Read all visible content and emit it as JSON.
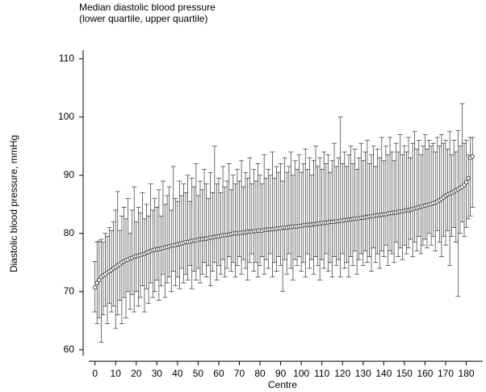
{
  "chart_data": {
    "type": "errorbar",
    "title": "Median diastolic blood pressure",
    "subtitle": "(lower quartile, upper quartile)",
    "x_label": "Centre",
    "y_label": "Diastolic blood pressure, mmHg",
    "xlim": [
      -3,
      188
    ],
    "ylim": [
      59,
      111.5
    ],
    "xticks": [
      0,
      10,
      20,
      30,
      40,
      50,
      60,
      70,
      80,
      90,
      100,
      110,
      120,
      130,
      140,
      150,
      160,
      170,
      180
    ],
    "yticks": [
      60,
      70,
      80,
      90,
      100,
      110
    ],
    "color": "#333333",
    "x": [
      0,
      1,
      2,
      3,
      4,
      5,
      6,
      7,
      8,
      9,
      10,
      11,
      12,
      13,
      14,
      15,
      16,
      17,
      18,
      19,
      20,
      21,
      22,
      23,
      24,
      25,
      26,
      27,
      28,
      29,
      30,
      31,
      32,
      33,
      34,
      35,
      36,
      37,
      38,
      39,
      40,
      41,
      42,
      43,
      44,
      45,
      46,
      47,
      48,
      49,
      50,
      51,
      52,
      53,
      54,
      55,
      56,
      57,
      58,
      59,
      60,
      61,
      62,
      63,
      64,
      65,
      66,
      67,
      68,
      69,
      70,
      71,
      72,
      73,
      74,
      75,
      76,
      77,
      78,
      79,
      80,
      81,
      82,
      83,
      84,
      85,
      86,
      87,
      88,
      89,
      90,
      91,
      92,
      93,
      94,
      95,
      96,
      97,
      98,
      99,
      100,
      101,
      102,
      103,
      104,
      105,
      106,
      107,
      108,
      109,
      110,
      111,
      112,
      113,
      114,
      115,
      116,
      117,
      118,
      119,
      120,
      121,
      122,
      123,
      124,
      125,
      126,
      127,
      128,
      129,
      130,
      131,
      132,
      133,
      134,
      135,
      136,
      137,
      138,
      139,
      140,
      141,
      142,
      143,
      144,
      145,
      146,
      147,
      148,
      149,
      150,
      151,
      152,
      153,
      154,
      155,
      156,
      157,
      158,
      159,
      160,
      161,
      162,
      163,
      164,
      165,
      166,
      167,
      168,
      169,
      170,
      171,
      172,
      173,
      174,
      175,
      176,
      177,
      178,
      179,
      180,
      181,
      182,
      183
    ],
    "values": [
      70.7,
      71.5,
      72.0,
      72.5,
      72.8,
      73.0,
      73.3,
      73.5,
      73.7,
      74.0,
      74.2,
      74.5,
      74.7,
      75.0,
      75.2,
      75.4,
      75.5,
      75.7,
      75.8,
      76.0,
      76.1,
      76.2,
      76.3,
      76.4,
      76.5,
      76.7,
      76.8,
      77.0,
      77.1,
      77.2,
      77.3,
      77.3,
      77.4,
      77.5,
      77.6,
      77.7,
      77.8,
      77.9,
      78.0,
      78.0,
      78.1,
      78.2,
      78.3,
      78.4,
      78.5,
      78.5,
      78.6,
      78.7,
      78.8,
      78.8,
      78.9,
      79.0,
      79.0,
      79.1,
      79.1,
      79.2,
      79.3,
      79.3,
      79.4,
      79.5,
      79.5,
      79.6,
      79.7,
      79.7,
      79.8,
      79.8,
      79.9,
      80.0,
      80.0,
      80.0,
      80.1,
      80.1,
      80.2,
      80.2,
      80.3,
      80.3,
      80.3,
      80.4,
      80.4,
      80.5,
      80.5,
      80.5,
      80.6,
      80.6,
      80.7,
      80.7,
      80.7,
      80.8,
      80.8,
      80.9,
      80.9,
      81.0,
      81.0,
      81.0,
      81.1,
      81.1,
      81.2,
      81.2,
      81.2,
      81.3,
      81.3,
      81.4,
      81.4,
      81.5,
      81.5,
      81.5,
      81.6,
      81.6,
      81.7,
      81.7,
      81.8,
      81.8,
      81.9,
      81.9,
      82.0,
      82.0,
      82.0,
      82.1,
      82.1,
      82.2,
      82.2,
      82.3,
      82.3,
      82.4,
      82.4,
      82.5,
      82.5,
      82.6,
      82.6,
      82.7,
      82.7,
      82.8,
      82.8,
      82.9,
      83.0,
      83.0,
      83.1,
      83.1,
      83.2,
      83.2,
      83.3,
      83.3,
      83.4,
      83.5,
      83.5,
      83.6,
      83.6,
      83.7,
      83.8,
      83.8,
      83.9,
      84.0,
      84.0,
      84.1,
      84.2,
      84.3,
      84.4,
      84.5,
      84.6,
      84.7,
      84.8,
      84.9,
      85.0,
      85.1,
      85.2,
      85.3,
      85.5,
      85.7,
      85.9,
      86.2,
      86.5,
      86.7,
      86.8,
      87.0,
      87.2,
      87.4,
      87.6,
      87.8,
      88.0,
      88.3,
      88.8,
      89.5,
      93.0,
      93.2
    ],
    "lower": [
      66.5,
      64.5,
      65.5,
      61.3,
      66.0,
      67.5,
      64.5,
      68.0,
      66.5,
      67.5,
      63.7,
      66.0,
      68.5,
      64.5,
      69.0,
      65.5,
      70.0,
      67.0,
      69.5,
      66.5,
      70.0,
      67.5,
      69.0,
      71.0,
      66.5,
      70.5,
      68.0,
      71.5,
      69.0,
      70.0,
      72.0,
      68.5,
      71.0,
      73.0,
      69.0,
      71.5,
      72.5,
      70.0,
      73.5,
      71.0,
      72.5,
      70.5,
      74.0,
      71.5,
      73.0,
      72.0,
      74.5,
      70.5,
      73.5,
      72.0,
      74.0,
      71.5,
      73.0,
      75.0,
      72.5,
      74.5,
      71.0,
      73.5,
      75.0,
      72.0,
      74.5,
      73.0,
      75.5,
      72.5,
      74.0,
      76.0,
      73.5,
      75.0,
      72.5,
      74.5,
      76.0,
      73.0,
      75.5,
      74.0,
      72.0,
      75.0,
      76.5,
      73.5,
      75.0,
      72.5,
      74.5,
      76.0,
      73.0,
      75.5,
      74.0,
      76.5,
      72.5,
      75.0,
      73.5,
      76.0,
      74.5,
      70.0,
      75.5,
      73.0,
      76.5,
      74.0,
      72.0,
      75.5,
      74.5,
      76.0,
      73.5,
      75.0,
      72.5,
      76.5,
      74.0,
      75.5,
      73.0,
      76.0,
      74.5,
      72.0,
      75.5,
      74.0,
      76.5,
      73.5,
      75.0,
      72.5,
      76.0,
      74.5,
      75.5,
      72.5,
      76.5,
      74.0,
      75.0,
      72.5,
      76.0,
      74.5,
      77.0,
      73.0,
      75.5,
      76.5,
      74.5,
      77.0,
      75.0,
      76.0,
      73.5,
      77.5,
      75.0,
      76.5,
      74.0,
      77.0,
      76.0,
      78.0,
      74.5,
      77.0,
      76.5,
      75.0,
      78.5,
      76.0,
      77.5,
      75.5,
      78.0,
      76.5,
      77.5,
      79.0,
      76.0,
      78.5,
      77.0,
      79.5,
      76.5,
      78.0,
      79.0,
      77.5,
      80.0,
      78.0,
      79.5,
      77.0,
      80.5,
      78.5,
      76.0,
      79.5,
      78.0,
      80.5,
      74.5,
      79.5,
      81.0,
      78.5,
      69.2,
      80.0,
      82.0,
      79.5,
      81.0,
      82.5,
      83.0,
      84.5
    ],
    "upper": [
      75.2,
      78.5,
      78.7,
      79.0,
      78.5,
      80.0,
      79.5,
      81.0,
      80.5,
      82.0,
      84.0,
      87.2,
      80.5,
      83.0,
      84.5,
      82.5,
      86.0,
      80.0,
      84.0,
      88.0,
      82.0,
      84.5,
      83.5,
      87.0,
      82.5,
      85.0,
      83.0,
      88.5,
      84.0,
      86.0,
      84.5,
      87.5,
      83.0,
      89.0,
      85.0,
      86.5,
      88.0,
      84.0,
      91.5,
      86.0,
      85.5,
      89.0,
      86.5,
      88.5,
      87.0,
      90.0,
      85.5,
      89.5,
      88.0,
      92.0,
      86.5,
      89.0,
      87.5,
      91.0,
      88.5,
      86.0,
      90.5,
      87.0,
      95.0,
      88.5,
      89.5,
      87.0,
      91.5,
      88.0,
      89.0,
      92.0,
      87.5,
      90.0,
      88.5,
      91.0,
      89.0,
      92.5,
      88.0,
      90.5,
      89.5,
      93.0,
      88.5,
      91.0,
      89.0,
      92.0,
      90.0,
      88.5,
      93.5,
      89.5,
      91.0,
      90.0,
      94.0,
      89.5,
      91.5,
      90.5,
      92.0,
      89.0,
      93.0,
      90.5,
      91.5,
      94.0,
      90.0,
      92.5,
      91.0,
      93.5,
      90.5,
      92.0,
      94.5,
      91.0,
      93.0,
      90.0,
      92.5,
      95.0,
      91.5,
      93.0,
      91.0,
      94.0,
      92.0,
      93.5,
      90.5,
      92.5,
      95.5,
      91.5,
      93.0,
      100.0,
      92.0,
      94.0,
      91.5,
      93.5,
      95.0,
      92.0,
      94.5,
      91.0,
      93.0,
      95.5,
      92.5,
      94.0,
      96.0,
      92.0,
      93.5,
      95.0,
      91.5,
      94.5,
      93.0,
      96.5,
      92.5,
      95.0,
      93.5,
      96.5,
      94.0,
      92.5,
      95.5,
      94.0,
      97.0,
      93.5,
      95.0,
      94.0,
      96.5,
      93.0,
      95.5,
      97.5,
      94.5,
      96.0,
      93.5,
      95.0,
      97.0,
      94.5,
      96.0,
      95.0,
      95.5,
      94.0,
      96.5,
      95.0,
      97.0,
      95.5,
      96.0,
      94.5,
      97.5,
      93.5,
      96.0,
      94.0,
      97.7,
      95.0,
      102.3,
      95.5,
      96.0,
      93.5,
      96.5,
      96.5
    ]
  }
}
